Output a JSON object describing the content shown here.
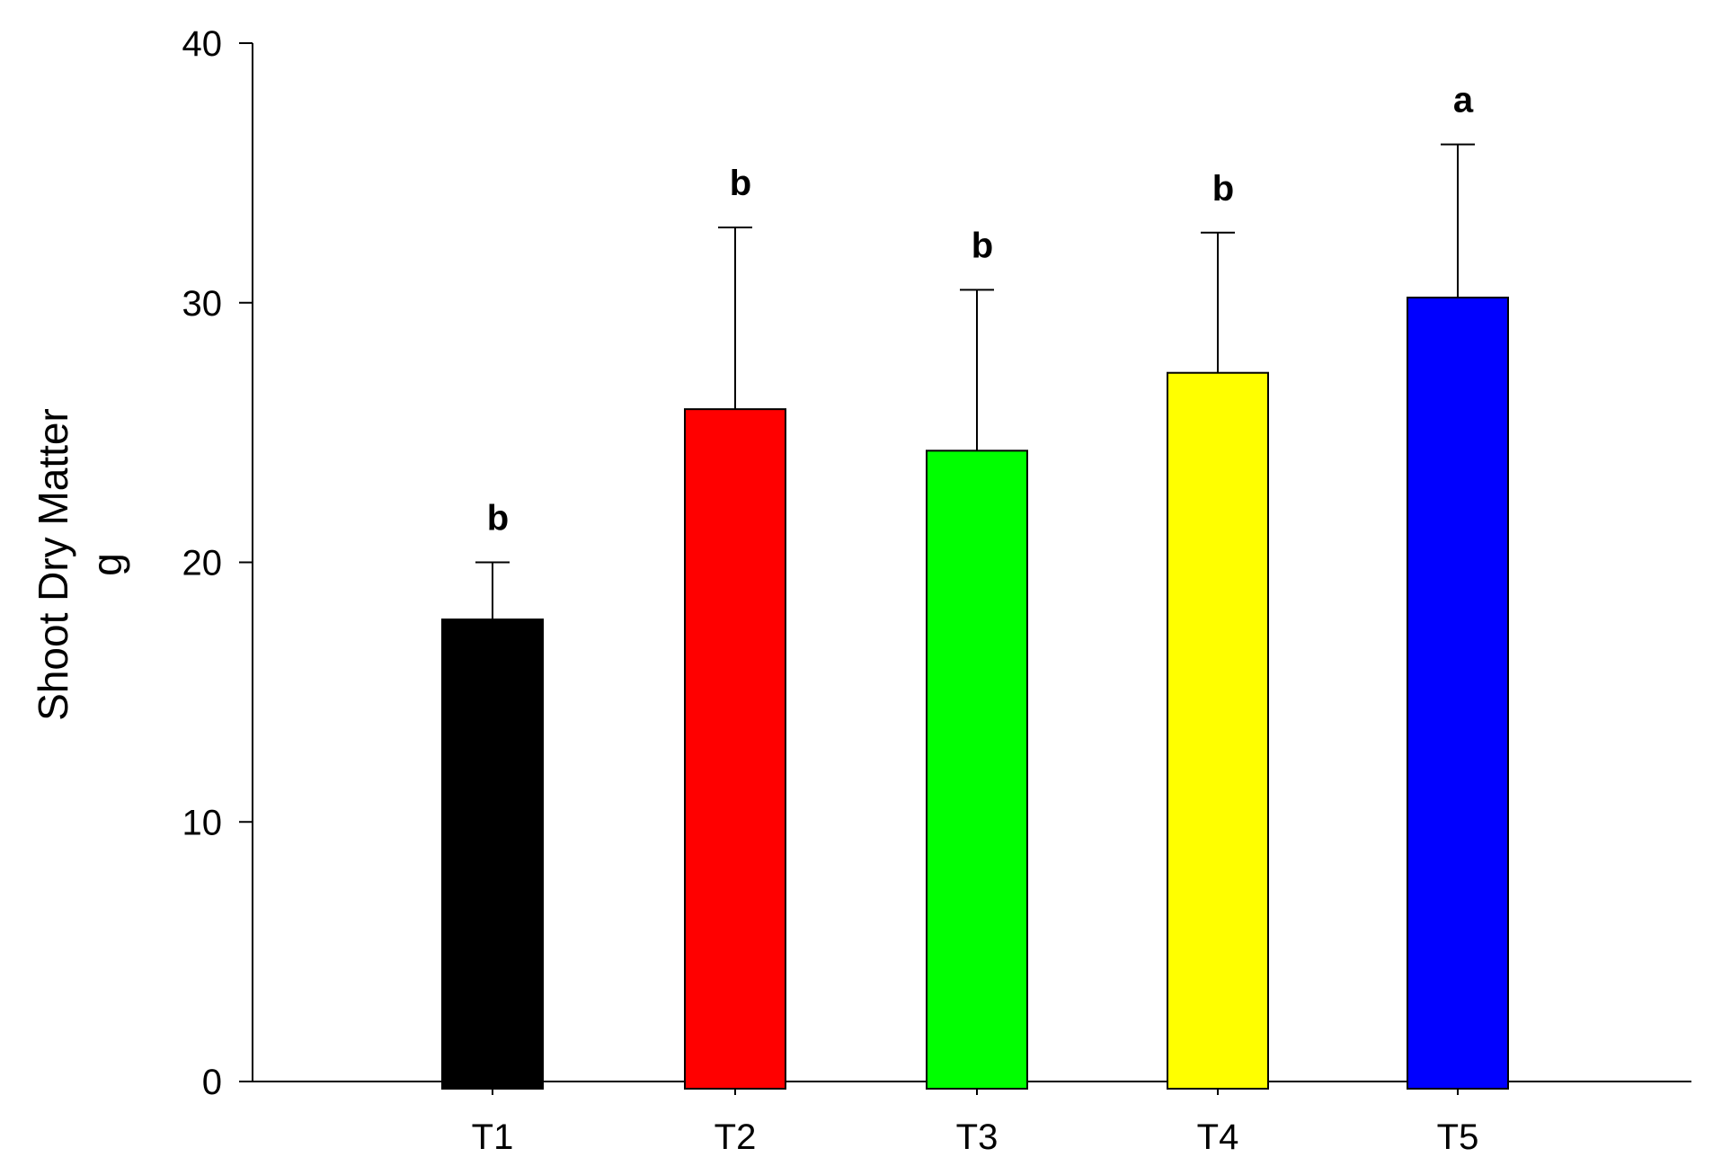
{
  "chart_data": {
    "type": "bar",
    "title": "",
    "xlabel": "",
    "ylabel_line1": "Shoot Dry Matter",
    "ylabel_line2": "g",
    "categories": [
      "T1",
      "T2",
      "T3",
      "T4",
      "T5"
    ],
    "values": [
      17.8,
      25.9,
      24.3,
      27.3,
      30.2
    ],
    "error_upper": [
      2.2,
      7.0,
      6.2,
      5.4,
      5.9
    ],
    "significance_letters": [
      "b",
      "b",
      "b",
      "b",
      "a"
    ],
    "colors": [
      "#000000",
      "#ff0000",
      "#00ff00",
      "#ffff00",
      "#0000ff"
    ],
    "ylim": [
      0,
      40
    ],
    "yticks": [
      0,
      10,
      20,
      30,
      40
    ],
    "grid": false,
    "legend": "none"
  }
}
